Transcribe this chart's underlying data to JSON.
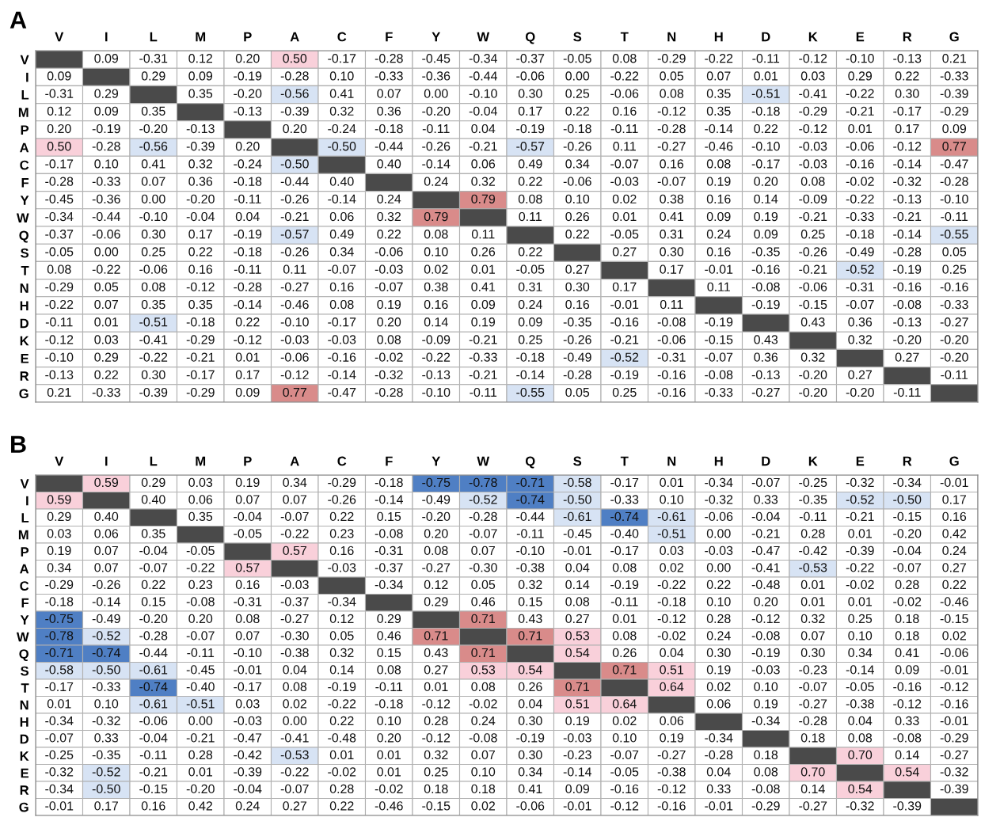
{
  "chart_data": [
    {
      "type": "heatmap",
      "title": "A",
      "cell_labels": [
        [
          null,
          "0.09",
          "-0.31",
          "0.12",
          "0.20",
          "0.50",
          "-0.17",
          "-0.28",
          "-0.45",
          "-0.34",
          "-0.37",
          "-0.05",
          "0.08",
          "-0.29",
          "-0.22",
          "-0.11",
          "-0.12",
          "-0.10",
          "-0.13",
          "0.21"
        ],
        [
          "0.09",
          null,
          "0.29",
          "0.09",
          "-0.19",
          "-0.28",
          "0.10",
          "-0.33",
          "-0.36",
          "-0.44",
          "-0.06",
          "0.00",
          "-0.22",
          "0.05",
          "0.07",
          "0.01",
          "0.03",
          "0.29",
          "0.22",
          "-0.33"
        ],
        [
          "-0.31",
          "0.29",
          null,
          "0.35",
          "-0.20",
          "-0.56",
          "0.41",
          "0.07",
          "0.00",
          "-0.10",
          "0.30",
          "0.25",
          "-0.06",
          "0.08",
          "0.35",
          "-0.51",
          "-0.41",
          "-0.22",
          "0.30",
          "-0.39"
        ],
        [
          "0.12",
          "0.09",
          "0.35",
          null,
          "-0.13",
          "-0.39",
          "0.32",
          "0.36",
          "-0.20",
          "-0.04",
          "0.17",
          "0.22",
          "0.16",
          "-0.12",
          "0.35",
          "-0.18",
          "-0.29",
          "-0.21",
          "-0.17",
          "-0.29"
        ],
        [
          "0.20",
          "-0.19",
          "-0.20",
          "-0.13",
          null,
          "0.20",
          "-0.24",
          "-0.18",
          "-0.11",
          "0.04",
          "-0.19",
          "-0.18",
          "-0.11",
          "-0.28",
          "-0.14",
          "0.22",
          "-0.12",
          "0.01",
          "0.17",
          "0.09"
        ],
        [
          "0.50",
          "-0.28",
          "-0.56",
          "-0.39",
          "0.20",
          null,
          "-0.50",
          "-0.44",
          "-0.26",
          "-0.21",
          "-0.57",
          "-0.26",
          "0.11",
          "-0.27",
          "-0.46",
          "-0.10",
          "-0.03",
          "-0.06",
          "-0.12",
          "0.77"
        ],
        [
          "-0.17",
          "0.10",
          "0.41",
          "0.32",
          "-0.24",
          "-0.50",
          null,
          "0.40",
          "-0.14",
          "0.06",
          "0.49",
          "0.34",
          "-0.07",
          "0.16",
          "0.08",
          "-0.17",
          "-0.03",
          "-0.16",
          "-0.14",
          "-0.47"
        ],
        [
          "-0.28",
          "-0.33",
          "0.07",
          "0.36",
          "-0.18",
          "-0.44",
          "0.40",
          null,
          "0.24",
          "0.32",
          "0.22",
          "-0.06",
          "-0.03",
          "-0.07",
          "0.19",
          "0.20",
          "0.08",
          "-0.02",
          "-0.32",
          "-0.28"
        ],
        [
          "-0.45",
          "-0.36",
          "0.00",
          "-0.20",
          "-0.11",
          "-0.26",
          "-0.14",
          "0.24",
          null,
          "0.79",
          "0.08",
          "0.10",
          "0.02",
          "0.38",
          "0.16",
          "0.14",
          "-0.09",
          "-0.22",
          "-0.13",
          "-0.10"
        ],
        [
          "-0.34",
          "-0.44",
          "-0.10",
          "-0.04",
          "0.04",
          "-0.21",
          "0.06",
          "0.32",
          "0.79",
          null,
          "0.11",
          "0.26",
          "0.01",
          "0.41",
          "0.09",
          "0.19",
          "-0.21",
          "-0.33",
          "-0.21",
          "-0.11"
        ],
        [
          "-0.37",
          "-0.06",
          "0.30",
          "0.17",
          "-0.19",
          "-0.57",
          "0.49",
          "0.22",
          "0.08",
          "0.11",
          null,
          "0.22",
          "-0.05",
          "0.31",
          "0.24",
          "0.09",
          "0.25",
          "-0.18",
          "-0.14",
          "-0.55"
        ],
        [
          "-0.05",
          "0.00",
          "0.25",
          "0.22",
          "-0.18",
          "-0.26",
          "0.34",
          "-0.06",
          "0.10",
          "0.26",
          "0.22",
          null,
          "0.27",
          "0.30",
          "0.16",
          "-0.35",
          "-0.26",
          "-0.49",
          "-0.28",
          "0.05"
        ],
        [
          "0.08",
          "-0.22",
          "-0.06",
          "0.16",
          "-0.11",
          "0.11",
          "-0.07",
          "-0.03",
          "0.02",
          "0.01",
          "-0.05",
          "0.27",
          null,
          "0.17",
          "-0.01",
          "-0.16",
          "-0.21",
          "-0.52",
          "-0.19",
          "0.25"
        ],
        [
          "-0.29",
          "0.05",
          "0.08",
          "-0.12",
          "-0.28",
          "-0.27",
          "0.16",
          "-0.07",
          "0.38",
          "0.41",
          "0.31",
          "0.30",
          "0.17",
          null,
          "0.11",
          "-0.08",
          "-0.06",
          "-0.31",
          "-0.16",
          "-0.16"
        ],
        [
          "-0.22",
          "0.07",
          "0.35",
          "0.35",
          "-0.14",
          "-0.46",
          "0.08",
          "0.19",
          "0.16",
          "0.09",
          "0.24",
          "0.16",
          "-0.01",
          "0.11",
          null,
          "-0.19",
          "-0.15",
          "-0.07",
          "-0.08",
          "-0.33"
        ],
        [
          "-0.11",
          "0.01",
          "-0.51",
          "-0.18",
          "0.22",
          "-0.10",
          "-0.17",
          "0.20",
          "0.14",
          "0.19",
          "0.09",
          "-0.35",
          "-0.16",
          "-0.08",
          "-0.19",
          null,
          "0.43",
          "0.36",
          "-0.13",
          "-0.27"
        ],
        [
          "-0.12",
          "0.03",
          "-0.41",
          "-0.29",
          "-0.12",
          "-0.03",
          "-0.03",
          "0.08",
          "-0.09",
          "-0.21",
          "0.25",
          "-0.26",
          "-0.21",
          "-0.06",
          "-0.15",
          "0.43",
          null,
          "0.32",
          "-0.20",
          "-0.20"
        ],
        [
          "-0.10",
          "0.29",
          "-0.22",
          "-0.21",
          "0.01",
          "-0.06",
          "-0.16",
          "-0.02",
          "-0.22",
          "-0.33",
          "-0.18",
          "-0.49",
          "-0.52",
          "-0.31",
          "-0.07",
          "0.36",
          "0.32",
          null,
          "0.27",
          "-0.20"
        ],
        [
          "-0.13",
          "0.22",
          "0.30",
          "-0.17",
          "0.17",
          "-0.12",
          "-0.14",
          "-0.32",
          "-0.13",
          "-0.21",
          "-0.14",
          "-0.28",
          "-0.19",
          "-0.16",
          "-0.08",
          "-0.13",
          "-0.20",
          "0.27",
          null,
          "-0.11"
        ],
        [
          "0.21",
          "-0.33",
          "-0.39",
          "-0.29",
          "0.09",
          "0.77",
          "-0.47",
          "-0.28",
          "-0.10",
          "-0.11",
          "-0.55",
          "0.05",
          "0.25",
          "-0.16",
          "-0.33",
          "-0.27",
          "-0.20",
          "-0.20",
          "-0.11",
          null
        ]
      ],
      "categories": [
        "V",
        "I",
        "L",
        "M",
        "P",
        "A",
        "C",
        "F",
        "Y",
        "W",
        "Q",
        "S",
        "T",
        "N",
        "H",
        "D",
        "K",
        "E",
        "R",
        "G"
      ],
      "y_categories": [
        "V",
        "I",
        "L",
        "M",
        "P",
        "A",
        "C",
        "F",
        "Y",
        "W",
        "Q",
        "S",
        "T",
        "N",
        "H",
        "D",
        "K",
        "E",
        "R",
        "G"
      ],
      "cells": [
        [
          null,
          0.09,
          -0.31,
          0.12,
          0.2,
          0.5,
          -0.17,
          -0.28,
          -0.45,
          -0.34,
          -0.37,
          -0.05,
          0.08,
          -0.29,
          -0.22,
          -0.11,
          -0.12,
          -0.1,
          -0.13,
          0.21
        ],
        [
          0.09,
          null,
          0.29,
          0.09,
          -0.19,
          -0.28,
          0.1,
          -0.33,
          -0.36,
          -0.44,
          -0.06,
          0.0,
          -0.22,
          0.05,
          0.07,
          0.01,
          0.03,
          0.29,
          0.22,
          -0.33
        ],
        [
          -0.31,
          0.29,
          null,
          0.35,
          -0.2,
          -0.56,
          0.41,
          0.07,
          0.0,
          -0.1,
          0.3,
          0.25,
          -0.06,
          0.08,
          0.35,
          -0.51,
          -0.41,
          -0.22,
          0.3,
          -0.39
        ],
        [
          0.12,
          0.09,
          0.35,
          null,
          -0.13,
          -0.39,
          0.32,
          0.36,
          -0.2,
          -0.04,
          0.17,
          0.22,
          0.16,
          -0.12,
          0.35,
          -0.18,
          -0.29,
          -0.21,
          -0.17,
          -0.29
        ],
        [
          0.2,
          -0.19,
          -0.2,
          -0.13,
          null,
          0.2,
          -0.24,
          -0.18,
          -0.11,
          0.04,
          -0.19,
          -0.18,
          -0.11,
          -0.28,
          -0.14,
          0.22,
          -0.12,
          0.01,
          0.17,
          0.09
        ],
        [
          0.5,
          -0.28,
          -0.56,
          -0.39,
          0.2,
          null,
          -0.5,
          -0.44,
          -0.26,
          -0.21,
          -0.57,
          -0.26,
          0.11,
          -0.27,
          -0.46,
          -0.1,
          -0.03,
          -0.06,
          -0.12,
          0.77
        ],
        [
          -0.17,
          0.1,
          0.41,
          0.32,
          -0.24,
          -0.5,
          null,
          0.4,
          -0.14,
          0.06,
          0.49,
          0.34,
          -0.07,
          0.16,
          0.08,
          -0.17,
          -0.03,
          -0.16,
          -0.14,
          -0.47
        ],
        [
          -0.28,
          -0.33,
          0.07,
          0.36,
          -0.18,
          -0.44,
          0.4,
          null,
          0.24,
          0.32,
          0.22,
          -0.06,
          -0.03,
          -0.07,
          0.19,
          0.2,
          0.08,
          -0.02,
          -0.32,
          -0.28
        ],
        [
          -0.45,
          -0.36,
          0.0,
          -0.2,
          -0.11,
          -0.26,
          -0.14,
          0.24,
          null,
          0.79,
          0.08,
          0.1,
          0.02,
          0.38,
          0.16,
          0.14,
          -0.09,
          -0.22,
          -0.13,
          -0.1
        ],
        [
          -0.34,
          -0.44,
          -0.1,
          -0.04,
          0.04,
          -0.21,
          0.06,
          0.32,
          0.79,
          null,
          0.11,
          0.26,
          0.01,
          0.41,
          0.09,
          0.19,
          -0.21,
          -0.33,
          -0.21,
          -0.11
        ],
        [
          -0.37,
          -0.06,
          0.3,
          0.17,
          -0.19,
          -0.57,
          0.49,
          0.22,
          0.08,
          0.11,
          null,
          0.22,
          -0.05,
          0.31,
          0.24,
          0.09,
          0.25,
          -0.18,
          -0.14,
          -0.55
        ],
        [
          -0.05,
          0.0,
          0.25,
          0.22,
          -0.18,
          -0.26,
          0.34,
          -0.06,
          0.1,
          0.26,
          0.22,
          null,
          0.27,
          0.3,
          0.16,
          -0.35,
          -0.26,
          -0.49,
          -0.28,
          0.05
        ],
        [
          0.08,
          -0.22,
          -0.06,
          0.16,
          -0.11,
          0.11,
          -0.07,
          -0.03,
          0.02,
          0.01,
          -0.05,
          0.27,
          null,
          0.17,
          -0.01,
          -0.16,
          -0.21,
          -0.52,
          -0.19,
          0.25
        ],
        [
          -0.29,
          0.05,
          0.08,
          -0.12,
          -0.28,
          -0.27,
          0.16,
          -0.07,
          0.38,
          0.41,
          0.31,
          0.3,
          0.17,
          null,
          0.11,
          -0.08,
          -0.06,
          -0.31,
          -0.16,
          -0.16
        ],
        [
          -0.22,
          0.07,
          0.35,
          0.35,
          -0.14,
          -0.46,
          0.08,
          0.19,
          0.16,
          0.09,
          0.24,
          0.16,
          -0.01,
          0.11,
          null,
          -0.19,
          -0.15,
          -0.07,
          -0.08,
          -0.33
        ],
        [
          -0.11,
          0.01,
          -0.51,
          -0.18,
          0.22,
          -0.1,
          -0.17,
          0.2,
          0.14,
          0.19,
          0.09,
          -0.35,
          -0.16,
          -0.08,
          -0.19,
          null,
          0.43,
          0.36,
          -0.13,
          -0.27
        ],
        [
          -0.12,
          0.03,
          -0.41,
          -0.29,
          -0.12,
          -0.03,
          -0.03,
          0.08,
          -0.09,
          -0.21,
          0.25,
          -0.26,
          -0.21,
          -0.06,
          -0.15,
          0.43,
          null,
          0.32,
          -0.2,
          -0.2
        ],
        [
          -0.1,
          0.29,
          -0.22,
          -0.21,
          0.01,
          -0.06,
          -0.16,
          -0.02,
          -0.22,
          -0.33,
          -0.18,
          -0.49,
          -0.52,
          -0.31,
          -0.07,
          0.36,
          0.32,
          null,
          0.27,
          -0.2
        ],
        [
          -0.13,
          0.22,
          0.3,
          -0.17,
          0.17,
          -0.12,
          -0.14,
          -0.32,
          -0.13,
          -0.21,
          -0.14,
          -0.28,
          -0.19,
          -0.16,
          -0.08,
          -0.13,
          -0.2,
          0.27,
          null,
          -0.11
        ],
        [
          0.21,
          -0.33,
          -0.39,
          -0.29,
          0.09,
          0.77,
          -0.47,
          -0.28,
          -0.1,
          -0.11,
          -0.55,
          0.05,
          0.25,
          -0.16,
          -0.33,
          -0.27,
          -0.2,
          -0.2,
          -0.11,
          null
        ]
      ]
    },
    {
      "type": "heatmap",
      "title": "B",
      "cell_labels": [
        [
          null,
          "0.59",
          "0.29",
          "0.03",
          "0.19",
          "0.34",
          "-0.29",
          "-0.18",
          "-0.75",
          "-0.78",
          "-0.71",
          "-0.58",
          "-0.17",
          "0.01",
          "-0.34",
          "-0.07",
          "-0.25",
          "-0.32",
          "-0.34",
          "-0.01"
        ],
        [
          "0.59",
          null,
          "0.40",
          "0.06",
          "0.07",
          "0.07",
          "-0.26",
          "-0.14",
          "-0.49",
          "-0.52",
          "-0.74",
          "-0.50",
          "-0.33",
          "0.10",
          "-0.32",
          "0.33",
          "-0.35",
          "-0.52",
          "-0.50",
          "0.17"
        ],
        [
          "0.29",
          "0.40",
          null,
          "0.35",
          "-0.04",
          "-0.07",
          "0.22",
          "0.15",
          "-0.20",
          "-0.28",
          "-0.44",
          "-0.61",
          "-0.74",
          "-0.61",
          "-0.06",
          "-0.04",
          "-0.11",
          "-0.21",
          "-0.15",
          "0.16"
        ],
        [
          "0.03",
          "0.06",
          "0.35",
          null,
          "-0.05",
          "-0.22",
          "0.23",
          "-0.08",
          "0.20",
          "-0.07",
          "-0.11",
          "-0.45",
          "-0.40",
          "-0.51",
          "0.00",
          "-0.21",
          "0.28",
          "0.01",
          "-0.20",
          "0.42"
        ],
        [
          "0.19",
          "0.07",
          "-0.04",
          "-0.05",
          null,
          "0.57",
          "0.16",
          "-0.31",
          "0.08",
          "0.07",
          "-0.10",
          "-0.01",
          "-0.17",
          "0.03",
          "-0.03",
          "-0.47",
          "-0.42",
          "-0.39",
          "-0.04",
          "0.24"
        ],
        [
          "0.34",
          "0.07",
          "-0.07",
          "-0.22",
          "0.57",
          null,
          "-0.03",
          "-0.37",
          "-0.27",
          "-0.30",
          "-0.38",
          "0.04",
          "0.08",
          "0.02",
          "0.00",
          "-0.41",
          "-0.53",
          "-0.22",
          "-0.07",
          "0.27"
        ],
        [
          "-0.29",
          "-0.26",
          "0.22",
          "0.23",
          "0.16",
          "-0.03",
          null,
          "-0.34",
          "0.12",
          "0.05",
          "0.32",
          "0.14",
          "-0.19",
          "-0.22",
          "0.22",
          "-0.48",
          "0.01",
          "-0.02",
          "0.28",
          "0.22"
        ],
        [
          "-0.18",
          "-0.14",
          "0.15",
          "-0.08",
          "-0.31",
          "-0.37",
          "-0.34",
          null,
          "0.29",
          "0.46",
          "0.15",
          "0.08",
          "-0.11",
          "-0.18",
          "0.10",
          "0.20",
          "0.01",
          "0.01",
          "-0.02",
          "-0.46"
        ],
        [
          "-0.75",
          "-0.49",
          "-0.20",
          "0.20",
          "0.08",
          "-0.27",
          "0.12",
          "0.29",
          null,
          "0.71",
          "0.43",
          "0.27",
          "0.01",
          "-0.12",
          "0.28",
          "-0.12",
          "0.32",
          "0.25",
          "0.18",
          "-0.15"
        ],
        [
          "-0.78",
          "-0.52",
          "-0.28",
          "-0.07",
          "0.07",
          "-0.30",
          "0.05",
          "0.46",
          "0.71",
          null,
          "0.71",
          "0.53",
          "0.08",
          "-0.02",
          "0.24",
          "-0.08",
          "0.07",
          "0.10",
          "0.18",
          "0.02"
        ],
        [
          "-0.71",
          "-0.74",
          "-0.44",
          "-0.11",
          "-0.10",
          "-0.38",
          "0.32",
          "0.15",
          "0.43",
          "0.71",
          null,
          "0.54",
          "0.26",
          "0.04",
          "0.30",
          "-0.19",
          "0.30",
          "0.34",
          "0.41",
          "-0.06"
        ],
        [
          "-0.58",
          "-0.50",
          "-0.61",
          "-0.45",
          "-0.01",
          "0.04",
          "0.14",
          "0.08",
          "0.27",
          "0.53",
          "0.54",
          null,
          "0.71",
          "0.51",
          "0.19",
          "-0.03",
          "-0.23",
          "-0.14",
          "0.09",
          "-0.01"
        ],
        [
          "-0.17",
          "-0.33",
          "-0.74",
          "-0.40",
          "-0.17",
          "0.08",
          "-0.19",
          "-0.11",
          "0.01",
          "0.08",
          "0.26",
          "0.71",
          null,
          "0.64",
          "0.02",
          "0.10",
          "-0.07",
          "-0.05",
          "-0.16",
          "-0.12"
        ],
        [
          "0.01",
          "0.10",
          "-0.61",
          "-0.51",
          "0.03",
          "0.02",
          "-0.22",
          "-0.18",
          "-0.12",
          "-0.02",
          "0.04",
          "0.51",
          "0.64",
          null,
          "0.06",
          "0.19",
          "-0.27",
          "-0.38",
          "-0.12",
          "-0.16"
        ],
        [
          "-0.34",
          "-0.32",
          "-0.06",
          "0.00",
          "-0.03",
          "0.00",
          "0.22",
          "0.10",
          "0.28",
          "0.24",
          "0.30",
          "0.19",
          "0.02",
          "0.06",
          null,
          "-0.34",
          "-0.28",
          "0.04",
          "0.33",
          "-0.01"
        ],
        [
          "-0.07",
          "0.33",
          "-0.04",
          "-0.21",
          "-0.47",
          "-0.41",
          "-0.48",
          "0.20",
          "-0.12",
          "-0.08",
          "-0.19",
          "-0.03",
          "0.10",
          "0.19",
          "-0.34",
          null,
          "0.18",
          "0.08",
          "-0.08",
          "-0.29"
        ],
        [
          "-0.25",
          "-0.35",
          "-0.11",
          "0.28",
          "-0.42",
          "-0.53",
          "0.01",
          "0.01",
          "0.32",
          "0.07",
          "0.30",
          "-0.23",
          "-0.07",
          "-0.27",
          "-0.28",
          "0.18",
          null,
          "0.70",
          "0.14",
          "-0.27"
        ],
        [
          "-0.32",
          "-0.52",
          "-0.21",
          "0.01",
          "-0.39",
          "-0.22",
          "-0.02",
          "0.01",
          "0.25",
          "0.10",
          "0.34",
          "-0.14",
          "-0.05",
          "-0.38",
          "0.04",
          "0.08",
          "0.70",
          null,
          "0.54",
          "-0.32"
        ],
        [
          "-0.34",
          "-0.50",
          "-0.15",
          "-0.20",
          "-0.04",
          "-0.07",
          "0.28",
          "-0.02",
          "0.18",
          "0.18",
          "0.41",
          "0.09",
          "-0.16",
          "-0.12",
          "0.33",
          "-0.08",
          "0.14",
          "0.54",
          null,
          "-0.39"
        ],
        [
          "-0.01",
          "0.17",
          "0.16",
          "0.42",
          "0.24",
          "0.27",
          "0.22",
          "-0.46",
          "-0.15",
          "0.02",
          "-0.06",
          "-0.01",
          "-0.12",
          "-0.16",
          "-0.01",
          "-0.29",
          "-0.27",
          "-0.32",
          "-0.39",
          null
        ]
      ],
      "categories": [
        "V",
        "I",
        "L",
        "M",
        "P",
        "A",
        "C",
        "F",
        "Y",
        "W",
        "Q",
        "S",
        "T",
        "N",
        "H",
        "D",
        "K",
        "E",
        "R",
        "G"
      ],
      "y_categories": [
        "V",
        "I",
        "L",
        "M",
        "P",
        "A",
        "C",
        "F",
        "Y",
        "W",
        "Q",
        "S",
        "T",
        "N",
        "H",
        "D",
        "K",
        "E",
        "R",
        "G"
      ],
      "cells": [
        [
          null,
          0.59,
          0.29,
          0.03,
          0.19,
          0.34,
          -0.29,
          -0.18,
          -0.75,
          -0.78,
          -0.71,
          -0.58,
          -0.17,
          0.01,
          -0.34,
          -0.07,
          -0.25,
          -0.32,
          -0.34,
          -0.01
        ],
        [
          0.59,
          null,
          0.4,
          0.06,
          0.07,
          0.07,
          -0.26,
          -0.14,
          -0.49,
          -0.52,
          -0.74,
          -0.5,
          -0.33,
          0.1,
          -0.32,
          0.33,
          -0.35,
          -0.52,
          -0.5,
          0.17
        ],
        [
          0.29,
          0.4,
          null,
          0.35,
          -0.04,
          -0.07,
          0.22,
          0.15,
          -0.2,
          -0.28,
          -0.44,
          -0.61,
          -0.74,
          -0.61,
          -0.06,
          -0.04,
          -0.11,
          -0.21,
          -0.15,
          0.16
        ],
        [
          0.03,
          0.06,
          0.35,
          null,
          -0.05,
          -0.22,
          0.23,
          -0.08,
          0.2,
          -0.07,
          -0.11,
          -0.45,
          -0.4,
          -0.51,
          0.0,
          -0.21,
          0.28,
          0.01,
          -0.2,
          0.42
        ],
        [
          0.19,
          0.07,
          -0.04,
          -0.05,
          null,
          0.57,
          0.16,
          -0.31,
          0.08,
          0.07,
          -0.1,
          -0.01,
          -0.17,
          0.03,
          -0.03,
          -0.47,
          -0.42,
          -0.39,
          -0.04,
          0.24
        ],
        [
          0.34,
          0.07,
          -0.07,
          -0.22,
          0.57,
          null,
          -0.03,
          -0.37,
          -0.27,
          -0.3,
          -0.38,
          0.04,
          0.08,
          0.02,
          0.0,
          -0.41,
          -0.53,
          -0.22,
          -0.07,
          0.27
        ],
        [
          -0.29,
          -0.26,
          0.22,
          0.23,
          0.16,
          -0.03,
          null,
          -0.34,
          0.12,
          0.05,
          0.32,
          0.14,
          -0.19,
          -0.22,
          0.22,
          -0.48,
          0.01,
          -0.02,
          0.28,
          0.22
        ],
        [
          -0.18,
          -0.14,
          0.15,
          -0.08,
          -0.31,
          -0.37,
          -0.34,
          null,
          0.29,
          0.46,
          0.15,
          0.08,
          -0.11,
          -0.18,
          0.1,
          0.2,
          0.01,
          0.01,
          -0.02,
          -0.46
        ],
        [
          -0.75,
          -0.49,
          -0.2,
          0.2,
          0.08,
          -0.27,
          0.12,
          0.29,
          null,
          0.71,
          0.43,
          0.27,
          0.01,
          -0.12,
          0.28,
          -0.12,
          0.32,
          0.25,
          0.18,
          -0.15
        ],
        [
          -0.78,
          -0.52,
          -0.28,
          -0.07,
          0.07,
          -0.3,
          0.05,
          0.46,
          0.71,
          null,
          0.71,
          0.53,
          0.08,
          -0.02,
          0.24,
          -0.08,
          0.07,
          0.1,
          0.18,
          0.02
        ],
        [
          -0.71,
          -0.74,
          -0.44,
          -0.11,
          -0.1,
          -0.38,
          0.32,
          0.15,
          0.43,
          0.71,
          null,
          0.54,
          0.26,
          0.04,
          0.3,
          -0.19,
          0.3,
          0.34,
          0.41,
          -0.06
        ],
        [
          -0.58,
          -0.5,
          -0.61,
          -0.45,
          -0.01,
          0.04,
          0.14,
          0.08,
          0.27,
          0.53,
          0.54,
          null,
          0.71,
          0.51,
          0.19,
          -0.03,
          -0.23,
          -0.14,
          0.09,
          -0.01
        ],
        [
          -0.17,
          -0.33,
          -0.74,
          -0.4,
          -0.17,
          0.08,
          -0.19,
          -0.11,
          0.01,
          0.08,
          0.26,
          0.71,
          null,
          0.64,
          0.02,
          0.1,
          -0.07,
          -0.05,
          -0.16,
          -0.12
        ],
        [
          0.01,
          0.1,
          -0.61,
          -0.51,
          0.03,
          0.02,
          -0.22,
          -0.18,
          -0.12,
          -0.02,
          0.04,
          0.51,
          0.64,
          null,
          0.06,
          0.19,
          -0.27,
          -0.38,
          -0.12,
          -0.16
        ],
        [
          -0.34,
          -0.32,
          -0.06,
          0.0,
          -0.03,
          0.0,
          0.22,
          0.1,
          0.28,
          0.24,
          0.3,
          0.19,
          0.02,
          0.06,
          null,
          -0.34,
          -0.28,
          0.04,
          0.33,
          -0.01
        ],
        [
          -0.07,
          0.33,
          -0.04,
          -0.21,
          -0.47,
          -0.41,
          -0.48,
          0.2,
          -0.12,
          -0.08,
          -0.19,
          -0.03,
          0.1,
          0.19,
          -0.34,
          null,
          0.18,
          0.08,
          -0.08,
          -0.29
        ],
        [
          -0.25,
          -0.35,
          -0.11,
          0.28,
          -0.42,
          -0.53,
          0.01,
          0.01,
          0.32,
          0.07,
          0.3,
          -0.23,
          -0.07,
          -0.27,
          -0.28,
          0.18,
          null,
          0.7,
          0.14,
          -0.27
        ],
        [
          -0.32,
          -0.52,
          -0.21,
          0.01,
          -0.39,
          -0.22,
          -0.02,
          0.01,
          0.25,
          0.1,
          0.34,
          -0.14,
          -0.05,
          -0.38,
          0.04,
          0.08,
          0.7,
          null,
          0.54,
          -0.32
        ],
        [
          -0.34,
          -0.5,
          -0.15,
          -0.2,
          -0.04,
          -0.07,
          0.28,
          -0.02,
          0.18,
          0.18,
          0.41,
          0.09,
          -0.16,
          -0.12,
          0.33,
          -0.08,
          0.14,
          0.54,
          null,
          -0.39
        ],
        [
          -0.01,
          0.17,
          0.16,
          0.42,
          0.24,
          0.27,
          0.22,
          -0.46,
          -0.15,
          0.02,
          -0.06,
          -0.01,
          -0.12,
          -0.16,
          -0.01,
          -0.29,
          -0.27,
          -0.32,
          -0.39,
          null
        ]
      ]
    }
  ]
}
